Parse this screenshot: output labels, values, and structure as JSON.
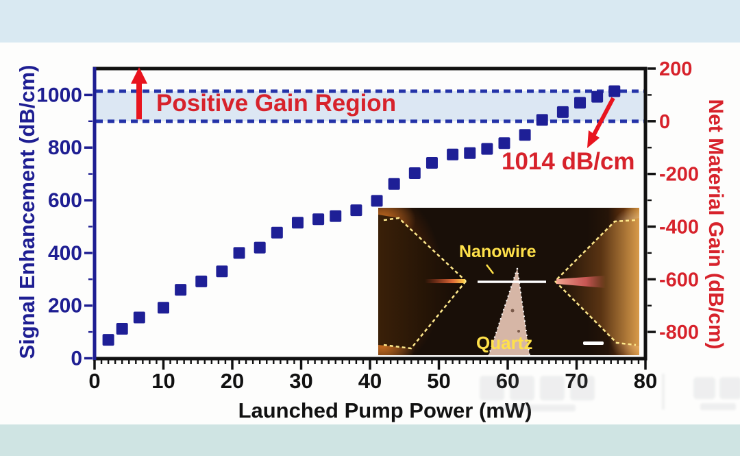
{
  "page": {
    "background": "#fdfdfc",
    "top_band_color": "#d9e9f2",
    "bottom_band_color": "#cfe4e3"
  },
  "chart_data": {
    "type": "scatter",
    "xlabel": "Launched Pump Power (mW)",
    "ylabel_left": "Signal Enhancement (dB/cm)",
    "ylabel_right": "Net Material Gain (dB/cm)",
    "xlim": [
      0,
      80
    ],
    "ylim_left": [
      0,
      1100
    ],
    "ylim_right": [
      -900,
      200
    ],
    "x_ticks": [
      0,
      10,
      20,
      30,
      40,
      50,
      60,
      70,
      80
    ],
    "y_ticks_left": [
      0,
      200,
      400,
      600,
      800,
      1000
    ],
    "y_ticks_right": [
      200,
      0,
      -200,
      -400,
      -600,
      -800
    ],
    "x_minor_step": 1,
    "y_minor_step": 100,
    "right_axis_offset_vs_left": -900,
    "grid": false,
    "legend": false,
    "series": [
      {
        "name": "signal-enhancement",
        "marker": "square",
        "color": "#1e1f96",
        "points": [
          [
            2,
            70
          ],
          [
            4,
            112
          ],
          [
            6.5,
            155
          ],
          [
            10,
            192
          ],
          [
            12.5,
            260
          ],
          [
            15.5,
            292
          ],
          [
            18.5,
            330
          ],
          [
            21,
            400
          ],
          [
            24,
            420
          ],
          [
            26.5,
            477
          ],
          [
            29.5,
            515
          ],
          [
            32.5,
            528
          ],
          [
            35,
            540
          ],
          [
            38,
            562
          ],
          [
            41,
            598
          ],
          [
            43.5,
            662
          ],
          [
            46.5,
            703
          ],
          [
            49,
            742
          ],
          [
            52,
            774
          ],
          [
            54.5,
            779
          ],
          [
            57,
            795
          ],
          [
            59.5,
            817
          ],
          [
            62.5,
            848
          ],
          [
            65,
            905
          ],
          [
            68,
            935
          ],
          [
            70.5,
            970
          ],
          [
            73,
            993
          ],
          [
            75.5,
            1014
          ]
        ]
      }
    ],
    "band": {
      "label": "Positive Gain Region",
      "from": 900,
      "to": 1014,
      "fill": "#dce7f3",
      "line_color": "#2433a8",
      "line_style": "dashed"
    },
    "annotations": {
      "max_gain_label": "1014 dB/cm",
      "max_gain_point": [
        75.5,
        1014
      ],
      "arrow_color": "#e8141e"
    }
  },
  "inset": {
    "description": "dark-field micrograph of nanowire between two fiber tapers on quartz tip",
    "labels": {
      "nanowire": "Nanowire",
      "quartz": "Quartz"
    },
    "label_color": "#ffe14a",
    "has_scale_bar": true
  },
  "colors": {
    "left_axis": "#1e1e92",
    "right_axis_text": "#d7222b",
    "x_axis": "#111111",
    "marker": "#1e1f96",
    "red_annotation": "#d7222b"
  }
}
